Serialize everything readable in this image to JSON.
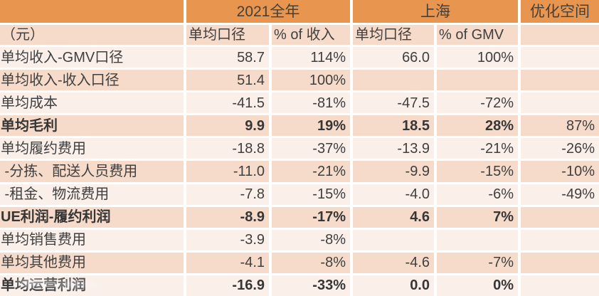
{
  "colors": {
    "header_orange": "#e8954f",
    "subheader_peach": "#f6dbca",
    "row_light": "#faefe9",
    "row_dark": "#f6dbca",
    "text": "#3f3f3f",
    "gap_white": "#ffffff"
  },
  "chart_data": {
    "type": "table",
    "unit_header": "（元）",
    "column_groups": [
      {
        "label": "2021全年",
        "span": 2
      },
      {
        "label": "上海",
        "span": 2
      },
      {
        "label": "优化空间",
        "span": 1
      }
    ],
    "sub_headers": [
      "单均口径",
      "% of 收入",
      "单均口径",
      "% of GMV",
      ""
    ],
    "rows": [
      {
        "label": "单均收入-GMV口径",
        "bold": false,
        "values": [
          "58.7",
          "114%",
          "66.0",
          "100%",
          ""
        ]
      },
      {
        "label": "单均收入-收入口径",
        "bold": false,
        "values": [
          "51.4",
          "100%",
          "",
          "",
          ""
        ]
      },
      {
        "label": "单均成本",
        "bold": false,
        "values": [
          "-41.5",
          "-81%",
          "-47.5",
          "-72%",
          ""
        ]
      },
      {
        "label": "单均毛利",
        "bold": true,
        "values": [
          "9.9",
          "19%",
          "18.5",
          "28%",
          "87%"
        ]
      },
      {
        "label": "单均履约费用",
        "bold": false,
        "values": [
          "-18.8",
          "-37%",
          "-13.9",
          "-21%",
          "-26%"
        ]
      },
      {
        "label": " -分拣、配送人员费用",
        "bold": false,
        "values": [
          "-11.0",
          "-21%",
          "-9.9",
          "-15%",
          "-10%"
        ]
      },
      {
        "label": " -租金、物流费用",
        "bold": false,
        "values": [
          "-7.8",
          "-15%",
          "-4.0",
          "-6%",
          "-49%"
        ]
      },
      {
        "label": "UE利润-履约利润",
        "bold": true,
        "values": [
          "-8.9",
          "-17%",
          "4.6",
          "7%",
          ""
        ]
      },
      {
        "label": "单均销售费用",
        "bold": false,
        "values": [
          "-3.9",
          "-8%",
          "",
          "",
          ""
        ]
      },
      {
        "label": "单均其他费用",
        "bold": false,
        "values": [
          "-4.1",
          "-8%",
          "-4.6",
          "-7%",
          ""
        ]
      },
      {
        "label": "单均运营利润",
        "bold": true,
        "values": [
          "-16.9",
          "-33%",
          "0.0",
          "0%",
          ""
        ]
      }
    ]
  }
}
